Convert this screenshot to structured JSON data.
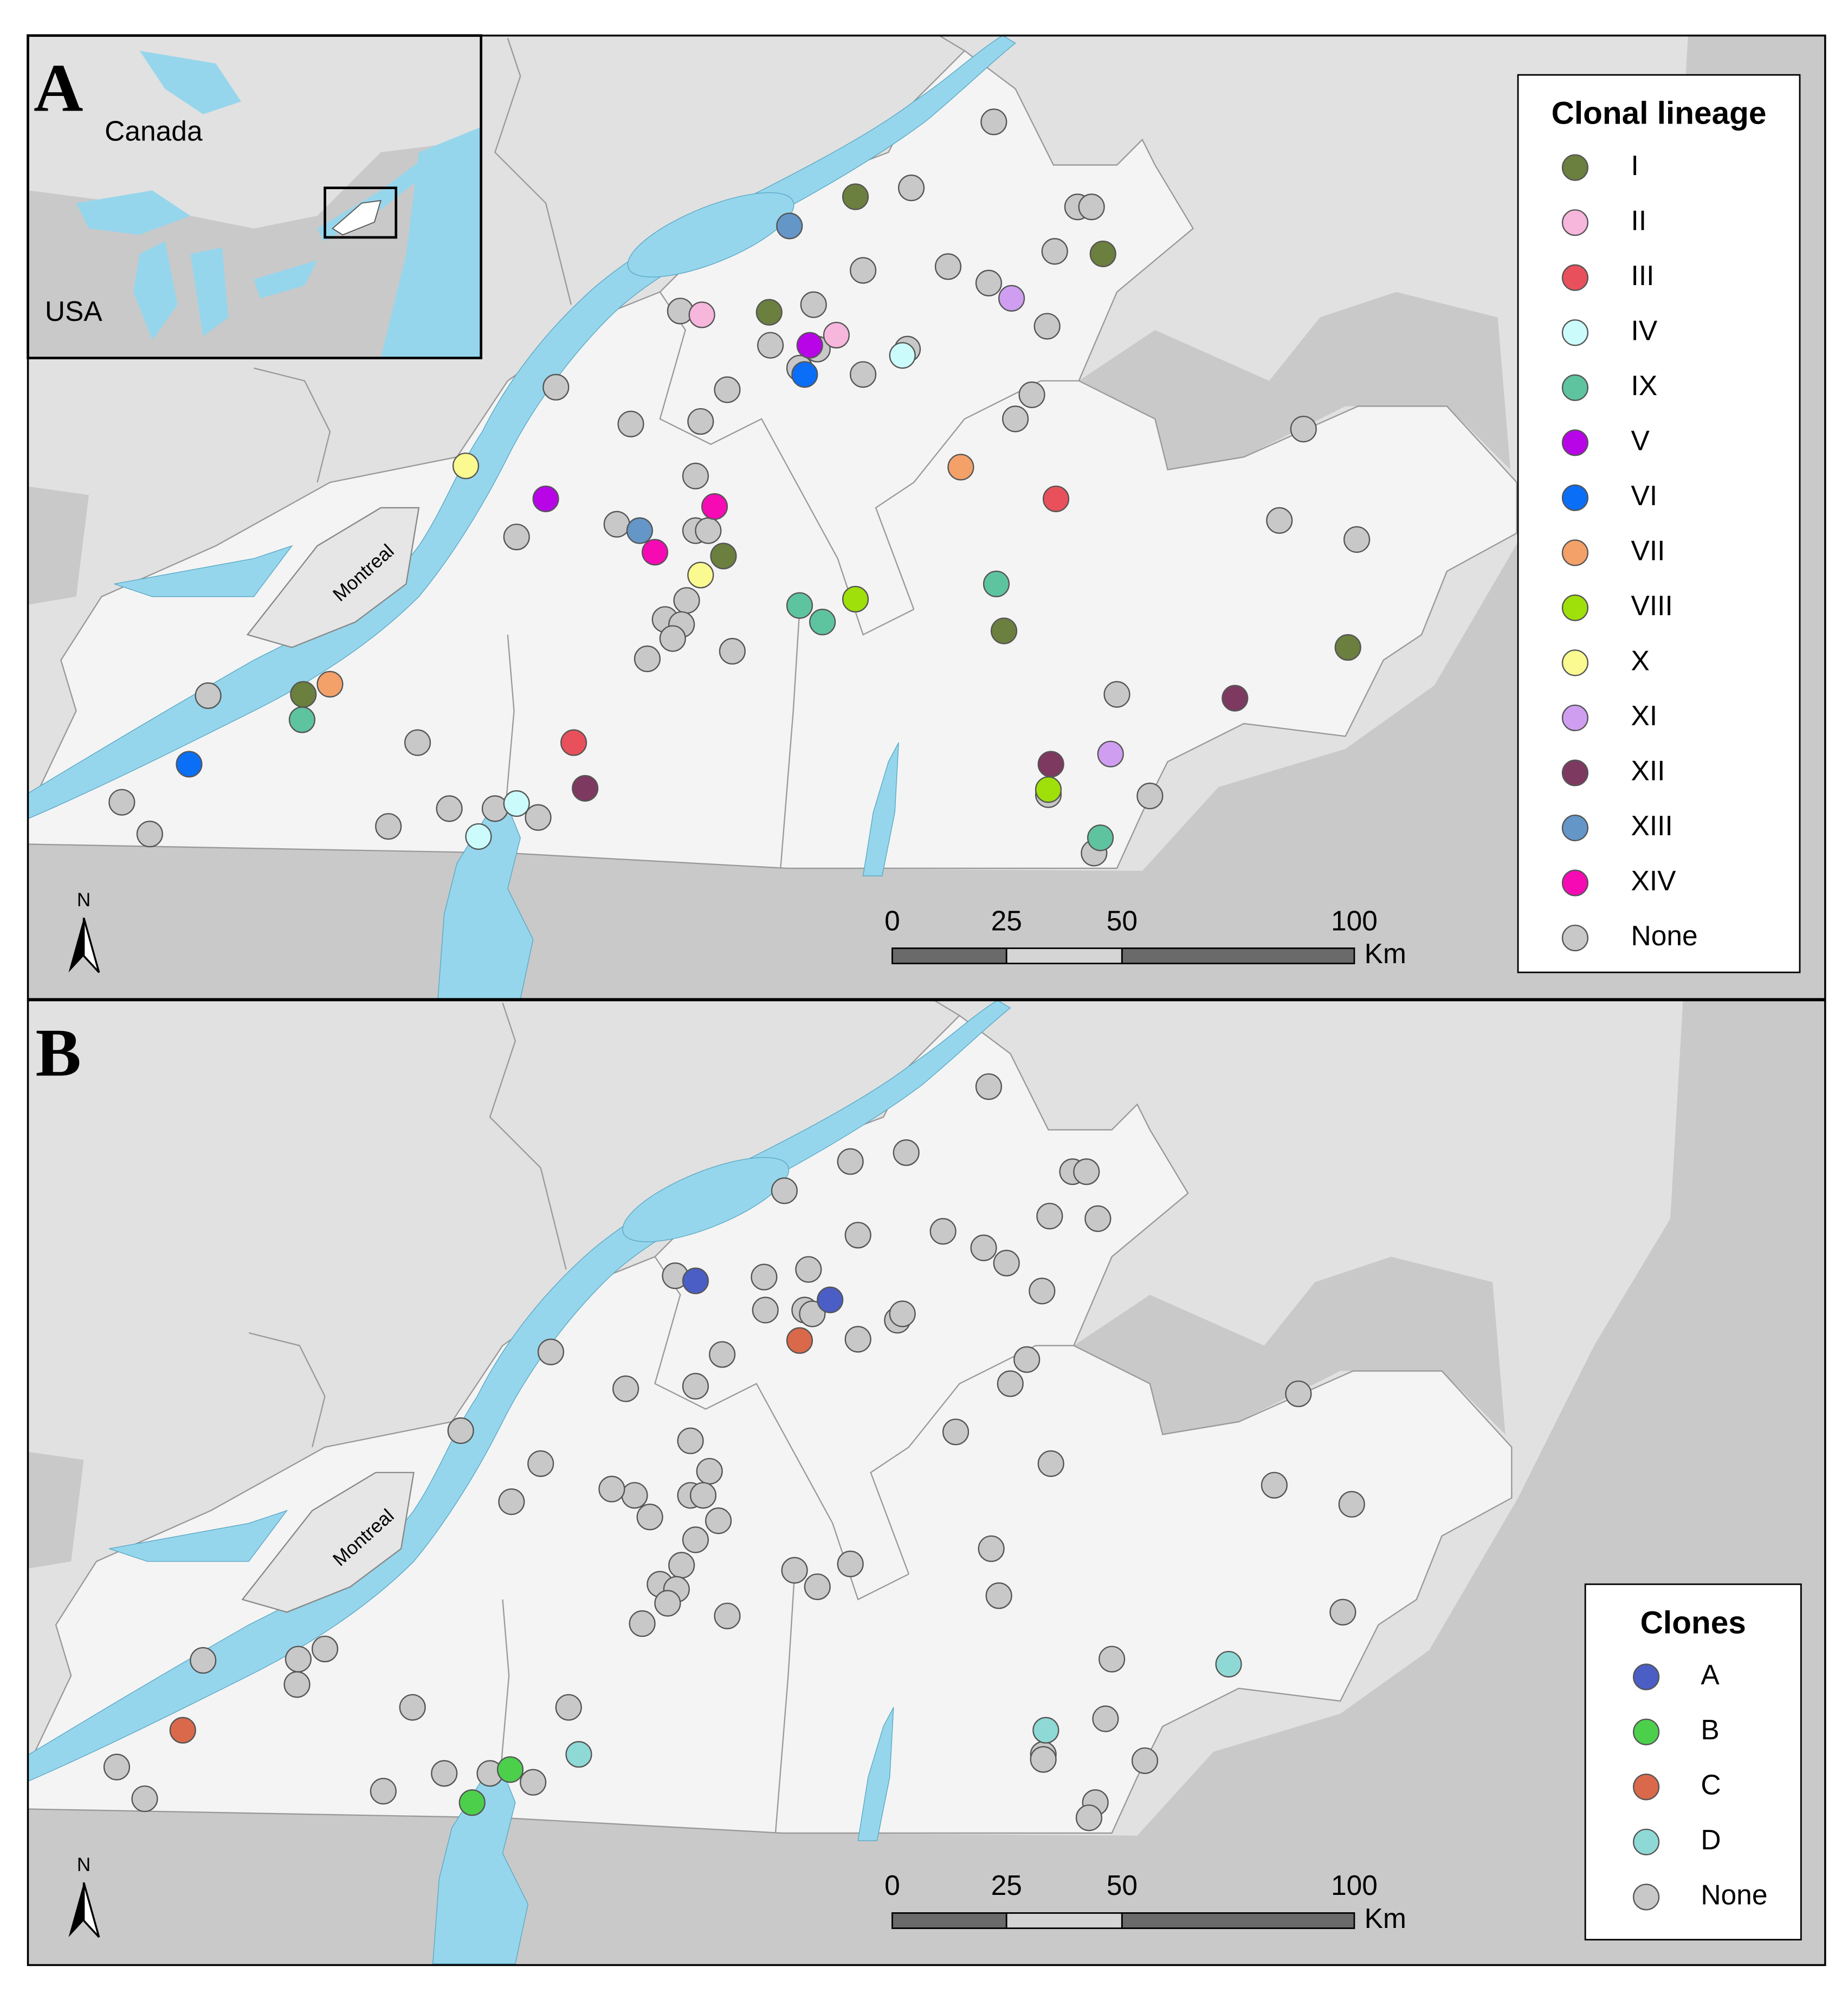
{
  "panels": [
    {
      "label": "A",
      "legend": {
        "title": "Clonal lineage",
        "items": [
          {
            "label": "I",
            "color": "#6b7f3f"
          },
          {
            "label": "II",
            "color": "#f7b6dc"
          },
          {
            "label": "III",
            "color": "#e8505b"
          },
          {
            "label": "IV",
            "color": "#ccfbfb"
          },
          {
            "label": "IX",
            "color": "#5ec4a0"
          },
          {
            "label": "V",
            "color": "#b705e8"
          },
          {
            "label": "VI",
            "color": "#0a6ef7"
          },
          {
            "label": "VII",
            "color": "#f4a069"
          },
          {
            "label": "VIII",
            "color": "#a0e00a"
          },
          {
            "label": "X",
            "color": "#fafa90"
          },
          {
            "label": "XI",
            "color": "#cf9ef0"
          },
          {
            "label": "XII",
            "color": "#7e3960"
          },
          {
            "label": "XIII",
            "color": "#6496c8"
          },
          {
            "label": "XIV",
            "color": "#f50ab4"
          },
          {
            "label": "None",
            "color": "#c8c8c8"
          }
        ]
      }
    },
    {
      "label": "B",
      "legend": {
        "title": "Clones",
        "items": [
          {
            "label": "A",
            "color": "#4a5ec5"
          },
          {
            "label": "B",
            "color": "#4cd04c"
          },
          {
            "label": "C",
            "color": "#d9694a"
          },
          {
            "label": "D",
            "color": "#8ed9d6"
          },
          {
            "label": "None",
            "color": "#c8c8c8"
          }
        ]
      }
    }
  ],
  "inset": {
    "labels": [
      "Canada",
      "USA"
    ]
  },
  "city": "Montreal",
  "north": "N",
  "scale_bar": {
    "ticks": [
      0,
      25,
      50,
      100
    ],
    "unit": "Km"
  }
}
